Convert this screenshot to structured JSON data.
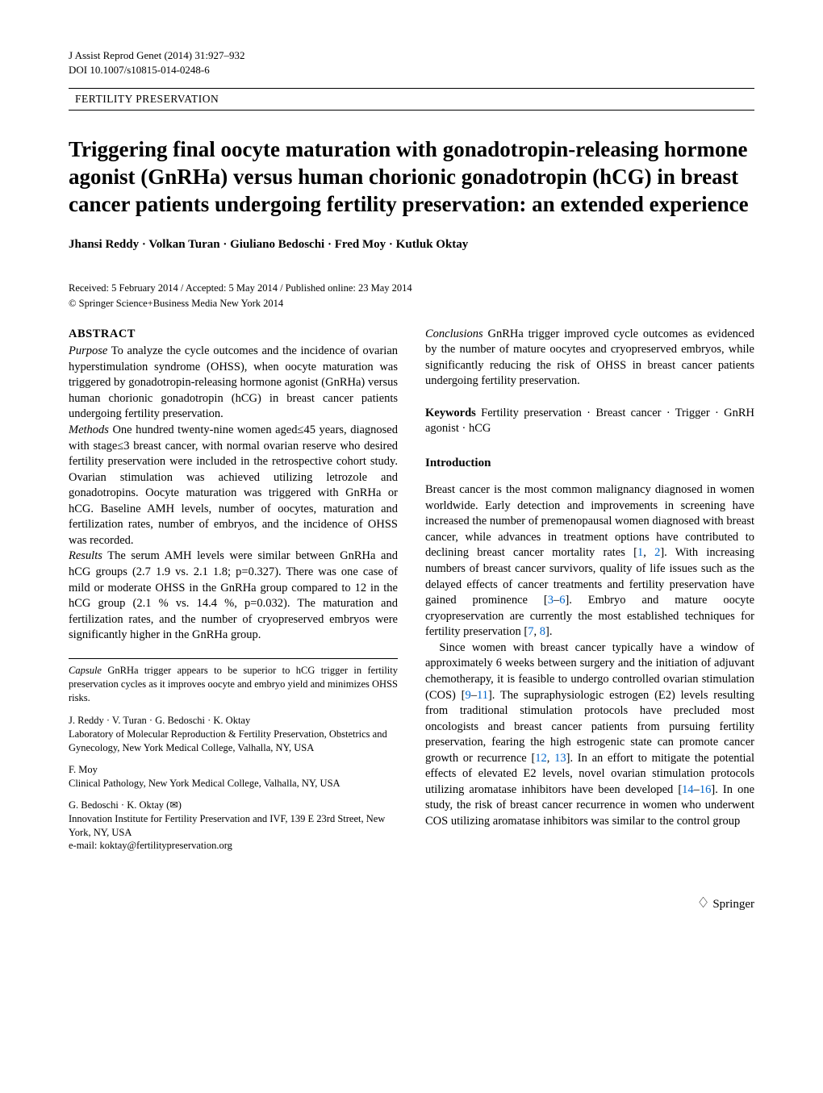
{
  "header": {
    "citation": "J Assist Reprod Genet (2014) 31:927–932",
    "doi": "DOI 10.1007/s10815-014-0248-6",
    "section_label": "FERTILITY PRESERVATION"
  },
  "title": "Triggering final oocyte maturation with gonadotropin-releasing hormone agonist (GnRHa) versus human chorionic gonadotropin (hCG) in breast cancer patients undergoing fertility preservation: an extended experience",
  "authors": "Jhansi Reddy · Volkan Turan · Giuliano Bedoschi · Fred Moy · Kutluk Oktay",
  "dates": "Received: 5 February 2014 / Accepted: 5 May 2014 / Published online: 23 May 2014",
  "copyright": "© Springer Science+Business Media New York 2014",
  "abstract": {
    "heading": "ABSTRACT",
    "purpose_label": "Purpose",
    "purpose": " To analyze the cycle outcomes and the incidence of ovarian hyperstimulation syndrome (OHSS), when oocyte maturation was triggered by gonadotropin-releasing hormone agonist (GnRHa) versus human chorionic gonadotropin (hCG) in breast cancer patients undergoing fertility preservation.",
    "methods_label": "Methods",
    "methods": " One hundred twenty-nine women aged≤45 years, diagnosed with stage≤3 breast cancer, with normal ovarian reserve who desired fertility preservation were included in the retrospective cohort study. Ovarian stimulation was achieved utilizing letrozole and gonadotropins. Oocyte maturation was triggered with GnRHa or hCG. Baseline AMH levels, number of oocytes, maturation and fertilization rates, number of embryos, and the incidence of OHSS was recorded.",
    "results_label": "Results",
    "results": " The serum AMH levels were similar between GnRHa and hCG groups (2.7 1.9 vs. 2.1 1.8; p=0.327). There was one case of mild or moderate OHSS in the GnRHa group compared to 12 in the hCG group (2.1 % vs. 14.4 %, p=0.032). The maturation and fertilization rates, and the number of cryopreserved embryos were significantly higher in the GnRHa group.",
    "conclusions_label": "Conclusions",
    "conclusions": " GnRHa trigger improved cycle outcomes as evidenced by the number of mature oocytes and cryopreserved embryos, while significantly reducing the risk of OHSS in breast cancer patients undergoing fertility preservation."
  },
  "keywords": {
    "label": "Keywords",
    "text": " Fertility preservation · Breast cancer · Trigger · GnRH agonist · hCG"
  },
  "capsule": {
    "label": "Capsule",
    "text": " GnRHa trigger appears to be superior to hCG trigger in fertility preservation cycles as it improves oocyte and embryo yield and minimizes OHSS risks."
  },
  "affiliations": {
    "g1_names": "J. Reddy · V. Turan · G. Bedoschi · K. Oktay",
    "g1_lines": "Laboratory of Molecular Reproduction & Fertility Preservation, Obstetrics and Gynecology, New York Medical College, Valhalla, NY, USA",
    "g2_names": "F. Moy",
    "g2_lines": "Clinical Pathology, New York Medical College, Valhalla, NY, USA",
    "g3_names": "G. Bedoschi · K. Oktay (✉)",
    "g3_lines": "Innovation Institute for Fertility Preservation and IVF, 139 E 23rd Street, New York, NY, USA",
    "g3_email": "e-mail: koktay@fertilitypreservation.org"
  },
  "intro": {
    "heading": "Introduction",
    "p1a": "Breast cancer is the most common malignancy diagnosed in women worldwide. Early detection and improvements in screening have increased the number of premenopausal women diagnosed with breast cancer, while advances in treatment options have contributed to declining breast cancer mortality rates [",
    "r1": "1",
    "p1b": ", ",
    "r2": "2",
    "p1c": "]. With increasing numbers of breast cancer survivors, quality of life issues such as the delayed effects of cancer treatments and fertility preservation have gained prominence [",
    "r3": "3",
    "p1d": "–",
    "r6": "6",
    "p1e": "]. Embryo and mature oocyte cryopreservation are currently the most established techniques for fertility preservation [",
    "r7": "7",
    "p1f": ", ",
    "r8": "8",
    "p1g": "].",
    "p2a": "Since women with breast cancer typically have a window of approximately 6 weeks between surgery and the initiation of adjuvant chemotherapy, it is feasible to undergo controlled ovarian stimulation (COS) [",
    "r9": "9",
    "p2b": "–",
    "r11": "11",
    "p2c": "]. The supraphysiologic estrogen (E2) levels resulting from traditional stimulation protocols have precluded most oncologists and breast cancer patients from pursuing fertility preservation, fearing the high estrogenic state can promote cancer growth or recurrence [",
    "r12": "12",
    "p2d": ", ",
    "r13": "13",
    "p2e": "]. In an effort to mitigate the potential effects of elevated E2 levels, novel ovarian stimulation protocols utilizing aromatase inhibitors have been developed [",
    "r14": "14",
    "p2f": "–",
    "r16": "16",
    "p2g": "]. In one study, the risk of breast cancer recurrence in women who underwent COS utilizing aromatase inhibitors was similar to the control group"
  },
  "footer": {
    "springer": "Springer"
  }
}
